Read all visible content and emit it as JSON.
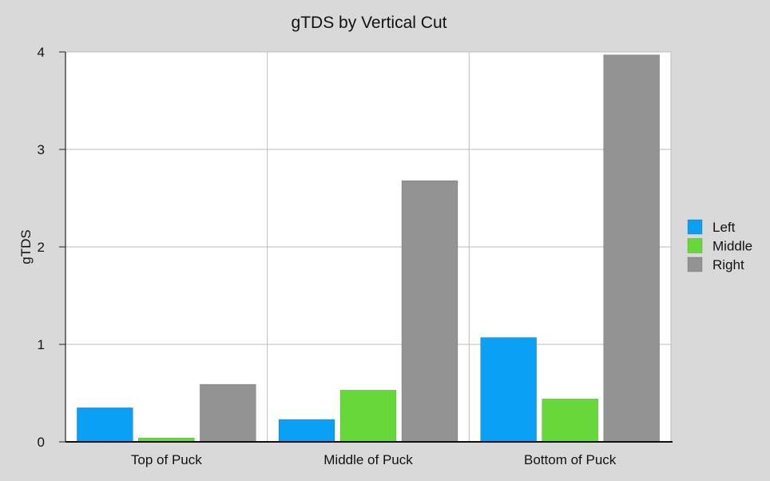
{
  "chart_data": {
    "type": "bar",
    "title": "gTDS by Vertical Cut",
    "xlabel": "",
    "ylabel": "gTDS",
    "ylim": [
      0,
      4
    ],
    "yticks": [
      "0",
      "1",
      "2",
      "3",
      "4"
    ],
    "categories": [
      "Top of Puck",
      "Middle of Puck",
      "Bottom of Puck"
    ],
    "series": [
      {
        "name": "Left",
        "color": "#0aa0f5",
        "values": [
          0.35,
          0.23,
          1.07
        ]
      },
      {
        "name": "Middle",
        "color": "#66d83a",
        "values": [
          0.04,
          0.53,
          0.44
        ]
      },
      {
        "name": "Right",
        "color": "#939393",
        "values": [
          0.59,
          2.68,
          3.97
        ]
      }
    ],
    "grid": true,
    "legend_position": "right"
  }
}
